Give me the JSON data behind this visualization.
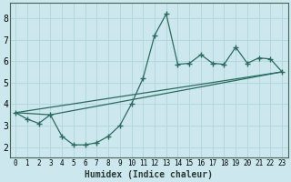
{
  "xlabel": "Humidex (Indice chaleur)",
  "bg_color": "#cce8ee",
  "grid_color": "#b0d4dc",
  "line_color": "#2a6b5e",
  "marker_color": "#2a6b5e",
  "xlim": [
    -0.5,
    23.5
  ],
  "ylim": [
    1.5,
    8.7
  ],
  "xticks": [
    0,
    1,
    2,
    3,
    4,
    5,
    6,
    7,
    8,
    9,
    10,
    11,
    12,
    13,
    14,
    15,
    16,
    17,
    18,
    19,
    20,
    21,
    22,
    23
  ],
  "yticks": [
    2,
    3,
    4,
    5,
    6,
    7,
    8
  ],
  "series1_x": [
    0,
    1,
    2,
    3,
    4,
    5,
    6,
    7,
    8,
    9,
    10,
    11,
    12,
    13,
    14,
    15,
    16,
    17,
    18,
    19,
    20,
    21,
    22,
    23
  ],
  "series1_y": [
    3.6,
    3.3,
    3.1,
    3.5,
    2.5,
    2.1,
    2.1,
    2.2,
    2.5,
    3.0,
    4.0,
    5.2,
    7.2,
    8.2,
    5.85,
    5.9,
    6.3,
    5.9,
    5.85,
    6.65,
    5.9,
    6.15,
    6.1,
    5.5
  ],
  "series2_x": [
    0,
    23
  ],
  "series2_y": [
    3.6,
    5.5
  ],
  "series3_x": [
    0,
    3,
    23
  ],
  "series3_y": [
    3.6,
    3.5,
    5.5
  ]
}
